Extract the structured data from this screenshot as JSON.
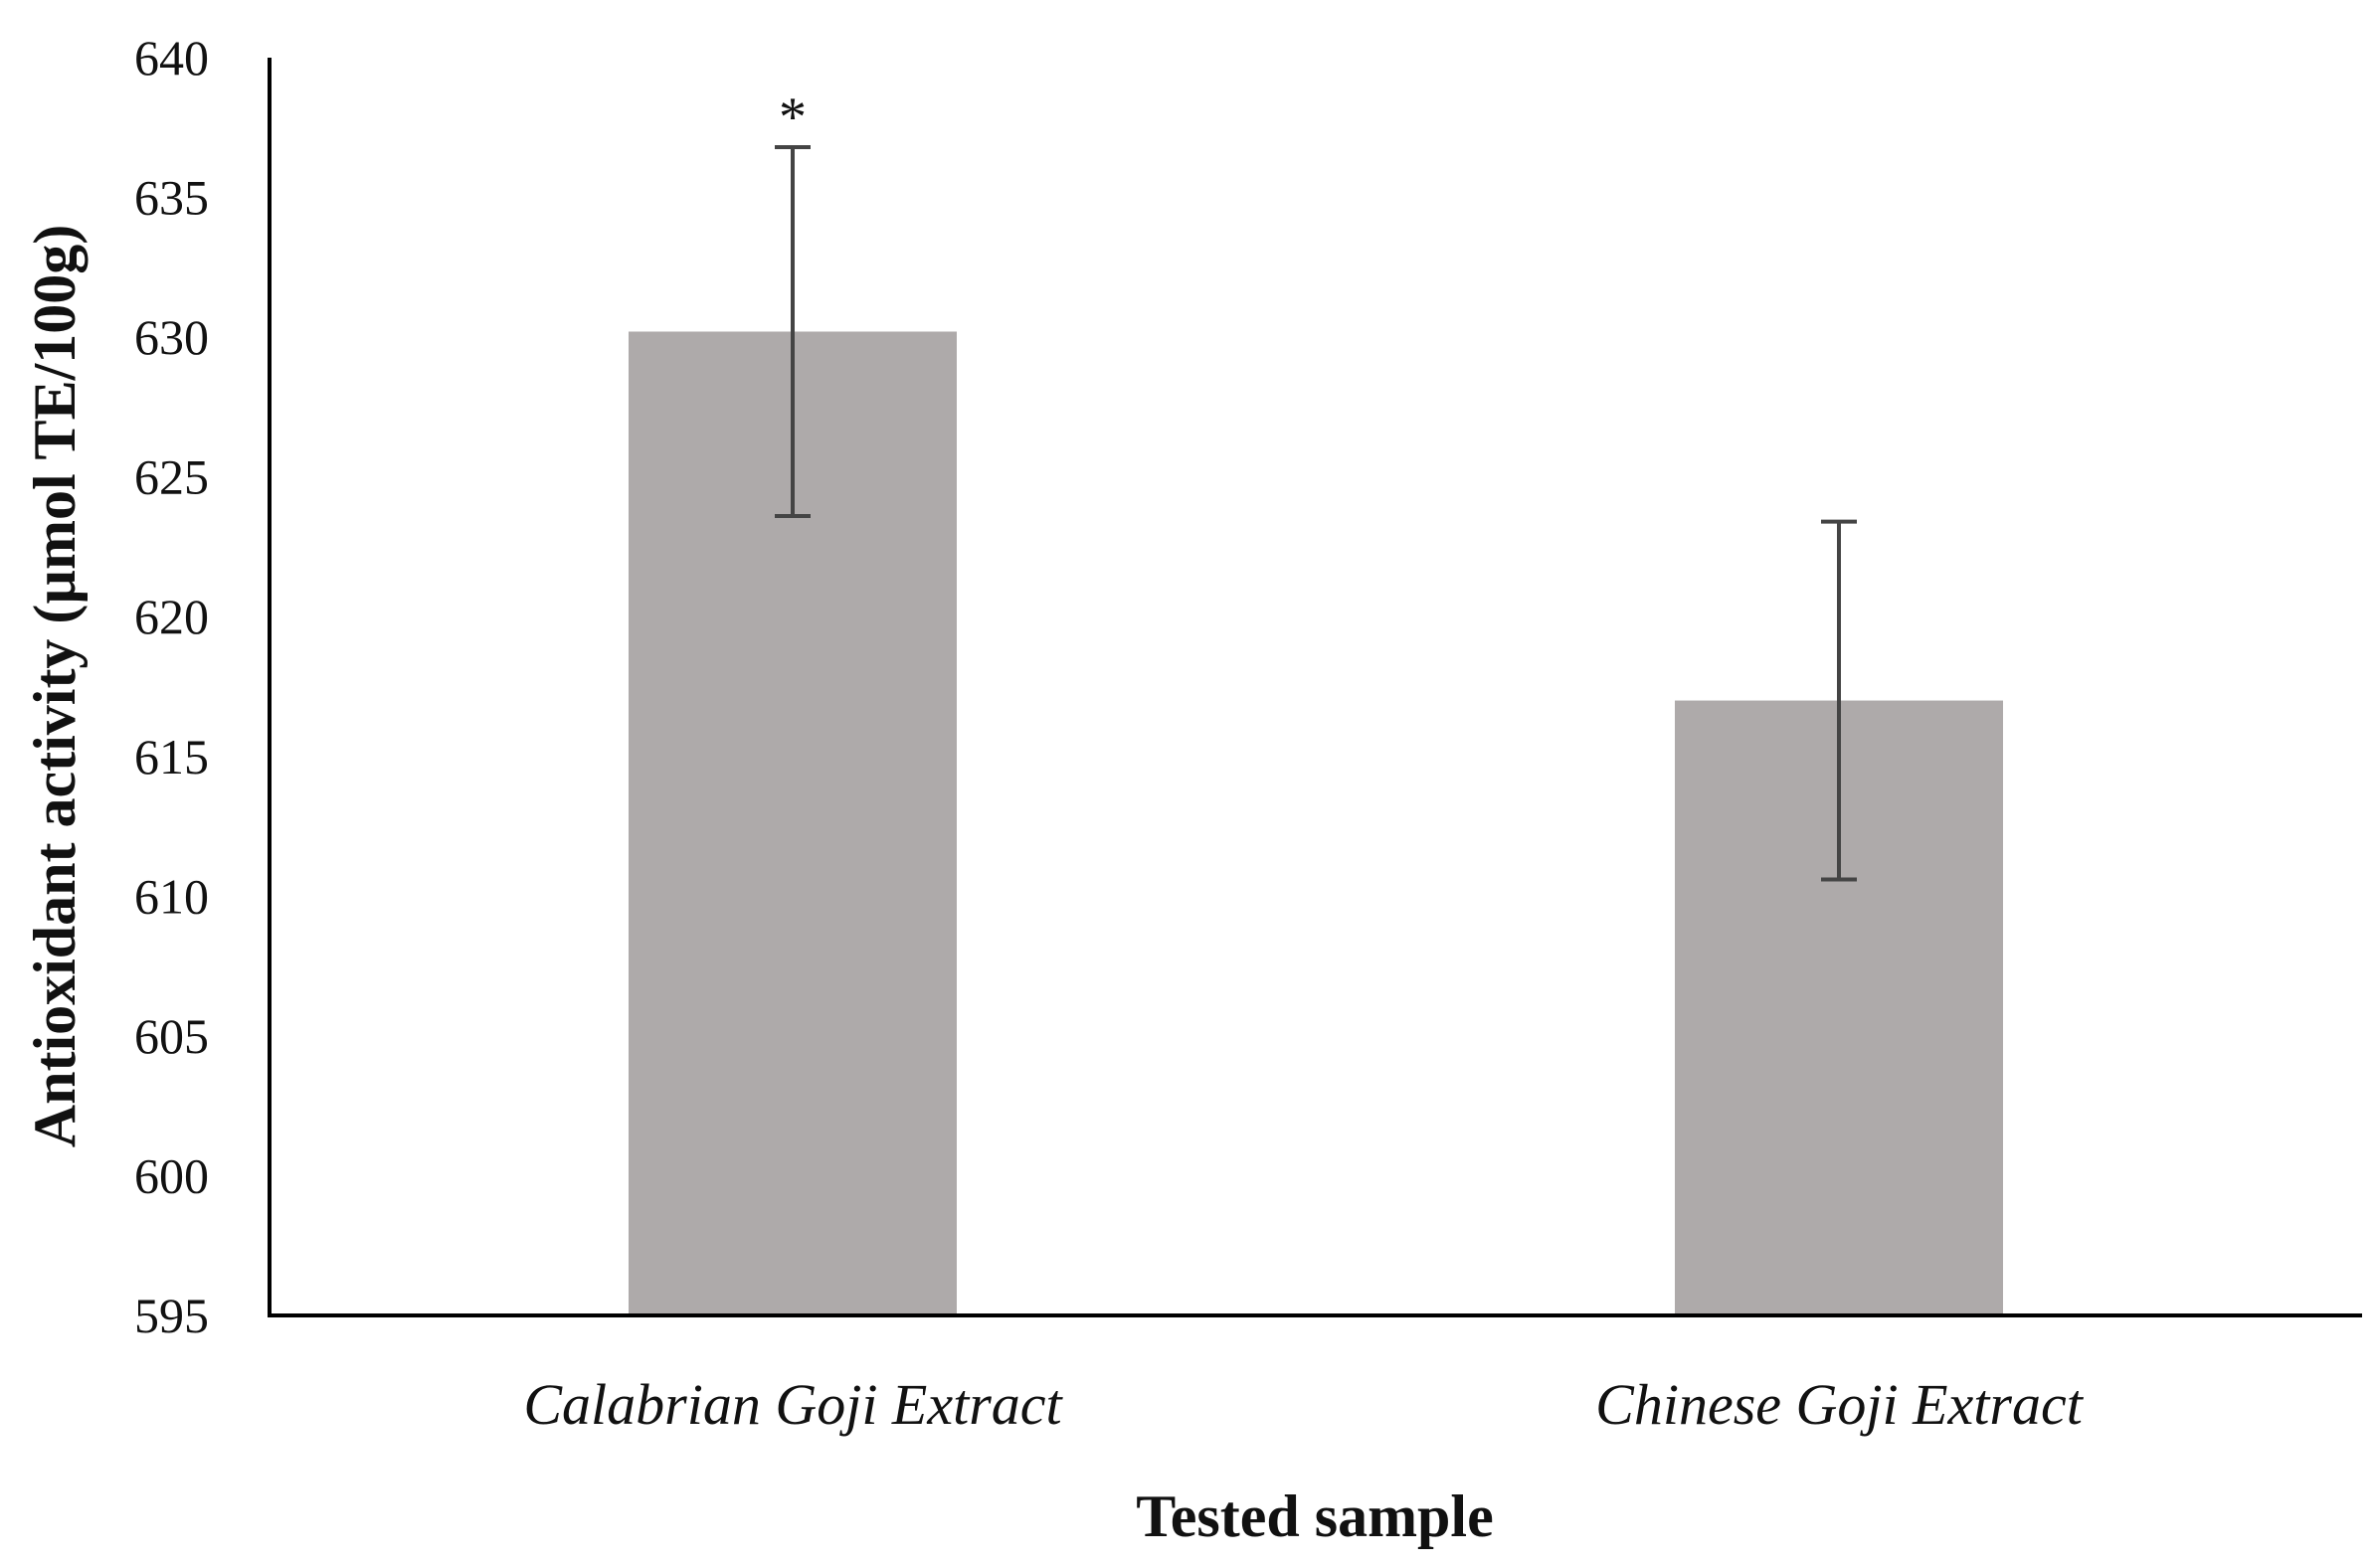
{
  "chart_data": {
    "type": "bar",
    "categories": [
      "Calabrian Goji Extract",
      "Chinese Goji Extract"
    ],
    "values": [
      630.2,
      617.0
    ],
    "error": [
      6.6,
      6.4
    ],
    "annotations": [
      "*",
      ""
    ],
    "xlabel": "Tested sample",
    "ylabel": "Antioxidant  activity (µmol TE/100g)",
    "ylim": [
      595,
      640
    ],
    "yticks": [
      595,
      600,
      605,
      610,
      615,
      620,
      625,
      630,
      635,
      640
    ],
    "grid": false,
    "legend": "none",
    "colors": {
      "bar": "#aeaaaa",
      "error_bar": "#444444",
      "axis": "#000000"
    }
  }
}
